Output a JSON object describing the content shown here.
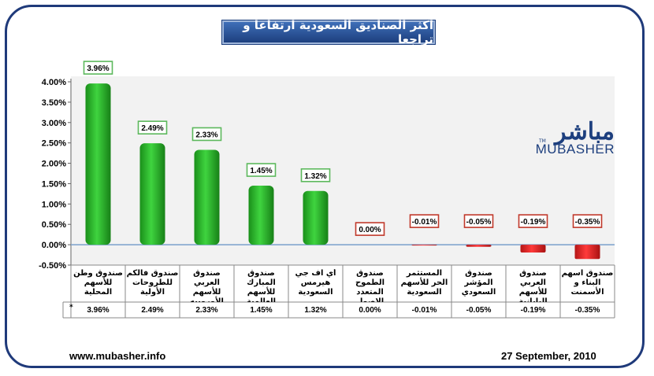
{
  "title": "اكثر الصناديق السعودية ارتفاعا و تراجعا",
  "logo": {
    "arabic": "مباشر",
    "english": "MUBASHER",
    "tm": "TM"
  },
  "footer": {
    "left": "www.mubasher.info",
    "right": "27 September, 2010"
  },
  "table_marker": "*",
  "colors": {
    "positive": "#2eb82e",
    "negative": "#e02020",
    "frame": "#1f3a7a",
    "pos_label_border": "#5cb85c",
    "neg_label_border": "#c0392b"
  },
  "chart_data": {
    "type": "bar",
    "title": "اكثر الصناديق السعودية ارتفاعا و تراجعا",
    "categories": [
      "صندوق وطن للأسهم المحلية",
      "صندوق فالكم للطروحات الأولية",
      "صندوق العربي للأسهم الأوروبيه",
      "صندوق المبارك للأسهم العالمية",
      "أي اف جي هيرمس السعودية",
      "صندوق الطموح المتعدد الاصول",
      "المستثمر الحر للأسهم السعودية",
      "صندوق المؤشر السعودي",
      "صندوق العربي للأسهم اليابانية",
      "صندوق اسهم البناء و الأسمنت"
    ],
    "values": [
      3.96,
      2.49,
      2.33,
      1.45,
      1.32,
      0.0,
      -0.01,
      -0.05,
      -0.19,
      -0.35
    ],
    "value_labels": [
      "3.96%",
      "2.49%",
      "2.33%",
      "1.45%",
      "1.32%",
      "0.00%",
      "-0.01%",
      "-0.05%",
      "-0.19%",
      "-0.35%"
    ],
    "y_ticks": [
      "4.00%",
      "3.50%",
      "3.00%",
      "2.50%",
      "2.00%",
      "1.50%",
      "1.00%",
      "0.50%",
      "0.00%",
      "-0.50%"
    ],
    "ylim": [
      -0.5,
      4.0
    ],
    "grid": false,
    "legend": "none"
  }
}
